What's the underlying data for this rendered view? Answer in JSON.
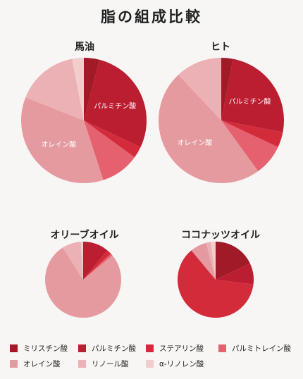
{
  "title": "脂の組成比較",
  "colors": {
    "ミリスチン酸": "#a01a28",
    "パルミチン酸": "#bb1d31",
    "ステアリン酸": "#d42b3b",
    "パルミトレイン酸": "#e5616f",
    "オレイン酸": "#e59a9f",
    "リノール酸": "#ebb1b4",
    "α-リノレン酸": "#f1cdce"
  },
  "chart_data": [
    {
      "type": "pie",
      "title": "馬油",
      "slices": [
        {
          "name": "ミリスチン酸",
          "value": 4
        },
        {
          "name": "パルミチン酸",
          "value": 28
        },
        {
          "name": "ステアリン酸",
          "value": 3
        },
        {
          "name": "パルミトレイン酸",
          "value": 10
        },
        {
          "name": "オレイン酸",
          "value": 36
        },
        {
          "name": "リノール酸",
          "value": 16
        },
        {
          "name": "α-リノレン酸",
          "value": 3
        }
      ],
      "labels": {
        "パルミチン酸": "パルミチン酸",
        "オレイン酸": "オレイン酸"
      }
    },
    {
      "type": "pie",
      "title": "ヒト",
      "slices": [
        {
          "name": "ミリスチン酸",
          "value": 3
        },
        {
          "name": "パルミチン酸",
          "value": 25
        },
        {
          "name": "ステアリン酸",
          "value": 4
        },
        {
          "name": "パルミトレイン酸",
          "value": 8
        },
        {
          "name": "オレイン酸",
          "value": 48
        },
        {
          "name": "リノール酸",
          "value": 12
        },
        {
          "name": "α-リノレン酸",
          "value": 0
        }
      ],
      "labels": {
        "パルミチン酸": "パルミチン酸",
        "オレイン酸": "オレイン酸"
      }
    },
    {
      "type": "pie",
      "title": "オリーブオイル",
      "slices": [
        {
          "name": "ミリスチン酸",
          "value": 0
        },
        {
          "name": "パルミチン酸",
          "value": 11
        },
        {
          "name": "ステアリン酸",
          "value": 2
        },
        {
          "name": "パルミトレイン酸",
          "value": 1
        },
        {
          "name": "オレイン酸",
          "value": 77
        },
        {
          "name": "リノール酸",
          "value": 8
        },
        {
          "name": "α-リノレン酸",
          "value": 1
        }
      ],
      "labels": {}
    },
    {
      "type": "pie",
      "title": "ココナッツオイル",
      "slices": [
        {
          "name": "ミリスチン酸",
          "value": 18
        },
        {
          "name": "パルミチン酸",
          "value": 9
        },
        {
          "name": "ステアリン酸",
          "value": 62
        },
        {
          "name": "パルミトレイン酸",
          "value": 0
        },
        {
          "name": "オレイン酸",
          "value": 7
        },
        {
          "name": "リノール酸",
          "value": 2
        },
        {
          "name": "α-リノレン酸",
          "value": 2
        }
      ],
      "labels": {}
    }
  ],
  "legend": [
    [
      "ミリスチン酸",
      "パルミチン酸",
      "ステアリン酸",
      "パルミトレイン酸"
    ],
    [
      "オレイン酸",
      "リノール酸",
      "α-リノレン酸"
    ]
  ]
}
